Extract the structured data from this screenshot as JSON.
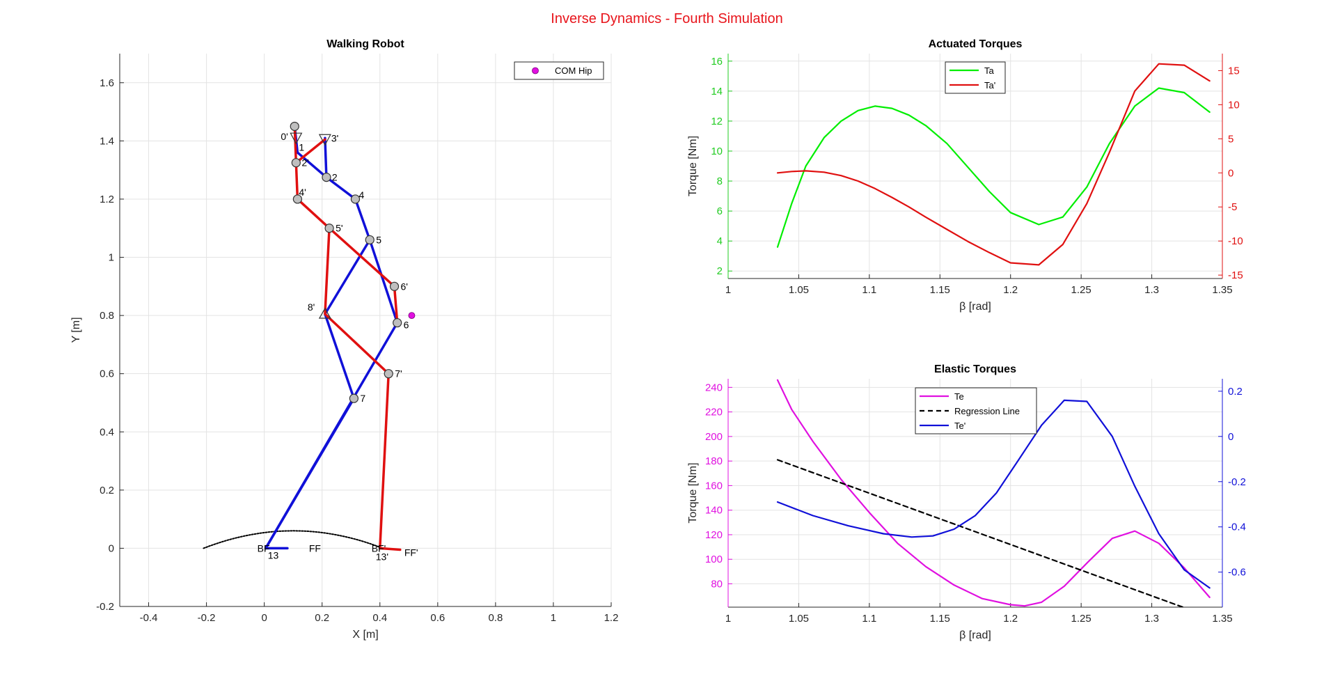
{
  "figure_title": "Inverse Dynamics - Fourth Simulation",
  "chart_data": [
    {
      "id": "walking",
      "type": "line",
      "title": "Walking Robot",
      "xlabel": "X [m]",
      "ylabel": "Y [m]",
      "xlim": [
        -0.5,
        1.2
      ],
      "ylim": [
        -0.2,
        1.7
      ],
      "xticks": [
        -0.4,
        -0.2,
        0,
        0.2,
        0.4,
        0.6,
        0.8,
        1,
        1.2
      ],
      "xtick_labels": [
        "-0.4",
        "-0.2",
        "0",
        "0.2",
        "0.4",
        "0.6",
        "0.8",
        "1",
        "1.2"
      ],
      "yticks": [
        -0.2,
        0,
        0.2,
        0.4,
        0.6,
        0.8,
        1,
        1.2,
        1.4,
        1.6
      ],
      "ytick_labels": [
        "-0.2",
        "0",
        "0.2",
        "0.4",
        "0.6",
        "0.8",
        "1",
        "1.2",
        "1.4",
        "1.6"
      ],
      "grid": true,
      "legend": {
        "location": "top-right",
        "entries": [
          "COM Hip"
        ]
      },
      "colors": {
        "blue": "#1010d8",
        "red": "#e01010",
        "com": "#e010e0",
        "node": "#bfbfbf"
      },
      "nodes": [
        {
          "name": "0'",
          "x": 0.11,
          "y": 1.41,
          "marker": "triangle-down"
        },
        {
          "name": "1",
          "x": 0.115,
          "y": 1.395,
          "marker": "none"
        },
        {
          "name": "3'",
          "x": 0.21,
          "y": 1.405,
          "marker": "triangle-down"
        },
        {
          "name": "2'",
          "x": 0.11,
          "y": 1.325,
          "marker": "circle"
        },
        {
          "name": "2",
          "x": 0.215,
          "y": 1.275,
          "marker": "circle"
        },
        {
          "name": "4'",
          "x": 0.115,
          "y": 1.2,
          "marker": "circle"
        },
        {
          "name": "4",
          "x": 0.315,
          "y": 1.2,
          "marker": "circle"
        },
        {
          "name": "5'",
          "x": 0.225,
          "y": 1.1,
          "marker": "circle"
        },
        {
          "name": "5",
          "x": 0.365,
          "y": 1.06,
          "marker": "circle"
        },
        {
          "name": "6'",
          "x": 0.45,
          "y": 0.9,
          "marker": "circle"
        },
        {
          "name": "8'",
          "x": 0.21,
          "y": 0.805,
          "marker": "triangle-up"
        },
        {
          "name": "6",
          "x": 0.46,
          "y": 0.775,
          "marker": "circle"
        },
        {
          "name": "7'",
          "x": 0.43,
          "y": 0.6,
          "marker": "circle"
        },
        {
          "name": "7",
          "x": 0.31,
          "y": 0.515,
          "marker": "circle"
        },
        {
          "name": "13",
          "x": 0.005,
          "y": 0.0,
          "marker": "none"
        },
        {
          "name": "FF",
          "x": 0.08,
          "y": 0.0,
          "marker": "none"
        },
        {
          "name": "13'",
          "x": 0.4,
          "y": 0.0,
          "marker": "none"
        },
        {
          "name": "FF'",
          "x": 0.47,
          "y": -0.005,
          "marker": "none"
        }
      ],
      "node_labels_shown": [
        "0'",
        "1",
        "3'",
        "2'",
        "2",
        "4'",
        "4",
        "5'",
        "5",
        "6'",
        "8'",
        "6",
        "7'",
        "7",
        "13",
        "FF",
        "13'",
        "FF'"
      ],
      "extra_labels": [
        {
          "text": "BF",
          "x": 0.0,
          "y": 0.0
        },
        {
          "text": "BF'",
          "x": 0.395,
          "y": 0.0
        }
      ],
      "blue_links": [
        [
          [
            0.105,
            1.45
          ],
          [
            0.115,
            1.36
          ]
        ],
        [
          [
            0.21,
            1.41
          ],
          [
            0.215,
            1.275
          ]
        ],
        [
          [
            0.115,
            1.36
          ],
          [
            0.215,
            1.275
          ],
          [
            0.315,
            1.2
          ],
          [
            0.365,
            1.06
          ],
          [
            0.21,
            0.805
          ],
          [
            0.31,
            0.515
          ],
          [
            0.005,
            0.0
          ]
        ],
        [
          [
            0.365,
            1.06
          ],
          [
            0.46,
            0.775
          ],
          [
            0.005,
            0.0
          ]
        ],
        [
          [
            0.005,
            0.0
          ],
          [
            0.08,
            0.0
          ]
        ]
      ],
      "red_links": [
        [
          [
            0.105,
            1.45
          ],
          [
            0.11,
            1.325
          ],
          [
            0.115,
            1.2
          ],
          [
            0.225,
            1.1
          ],
          [
            0.21,
            0.805
          ],
          [
            0.43,
            0.6
          ],
          [
            0.4,
            0.0
          ]
        ],
        [
          [
            0.11,
            1.325
          ],
          [
            0.21,
            1.405
          ]
        ],
        [
          [
            0.225,
            1.1
          ],
          [
            0.45,
            0.9
          ],
          [
            0.46,
            0.775
          ]
        ],
        [
          [
            0.4,
            0.0
          ],
          [
            0.47,
            -0.005
          ]
        ]
      ],
      "com_hip": {
        "x": 0.51,
        "y": 0.8
      },
      "trajectory": {
        "x_start": -0.21,
        "x_end": 0.41,
        "apex_x": 0.1,
        "apex_y": 0.06,
        "style": "dotted"
      }
    },
    {
      "id": "actuated",
      "type": "line",
      "title": "Actuated Torques",
      "xlabel": "β [rad]",
      "ylabel": "Torque [Nm]",
      "xlim": [
        1.0,
        1.35
      ],
      "ylim_left": [
        1.5,
        16.5
      ],
      "ylim_right": [
        -15.5,
        17.5
      ],
      "xticks": [
        1,
        1.05,
        1.1,
        1.15,
        1.2,
        1.25,
        1.3,
        1.35
      ],
      "xtick_labels": [
        "1",
        "1.05",
        "1.1",
        "1.15",
        "1.2",
        "1.25",
        "1.3",
        "1.35"
      ],
      "yticks_left": [
        2,
        4,
        6,
        8,
        10,
        12,
        14,
        16
      ],
      "ytick_labels_left": [
        "2",
        "4",
        "6",
        "8",
        "10",
        "12",
        "14",
        "16"
      ],
      "yticks_right": [
        -15,
        -10,
        -5,
        0,
        5,
        10,
        15
      ],
      "ytick_labels_right": [
        "-15",
        "-10",
        "-5",
        "0",
        "5",
        "10",
        "15"
      ],
      "grid": true,
      "legend": {
        "location": "top-left",
        "entries": [
          "Ta",
          "Ta'"
        ]
      },
      "colors": {
        "left_axis": "#22cc22",
        "right_axis": "#e01010"
      },
      "series": [
        {
          "name": "Ta",
          "axis": "left",
          "color": "#00ee00",
          "x": [
            1.035,
            1.045,
            1.055,
            1.068,
            1.08,
            1.092,
            1.104,
            1.116,
            1.128,
            1.14,
            1.155,
            1.17,
            1.185,
            1.2,
            1.22,
            1.237,
            1.254,
            1.27,
            1.288,
            1.305,
            1.323,
            1.341
          ],
          "values": [
            3.6,
            6.5,
            9.0,
            10.9,
            12.0,
            12.7,
            13.0,
            12.85,
            12.4,
            11.7,
            10.5,
            8.9,
            7.3,
            5.9,
            5.1,
            5.6,
            7.6,
            10.5,
            13.0,
            14.2,
            13.9,
            12.6
          ]
        },
        {
          "name": "Ta'",
          "axis": "right",
          "color": "#e01010",
          "x": [
            1.035,
            1.045,
            1.055,
            1.068,
            1.08,
            1.092,
            1.104,
            1.116,
            1.128,
            1.14,
            1.155,
            1.17,
            1.185,
            1.2,
            1.22,
            1.237,
            1.254,
            1.27,
            1.288,
            1.305,
            1.323,
            1.341
          ],
          "values": [
            0.0,
            0.2,
            0.3,
            0.1,
            -0.4,
            -1.2,
            -2.3,
            -3.6,
            -5.0,
            -6.5,
            -8.3,
            -10.1,
            -11.7,
            -13.2,
            -13.5,
            -10.5,
            -4.5,
            3.0,
            12.0,
            16.0,
            15.8,
            13.5
          ]
        }
      ]
    },
    {
      "id": "elastic",
      "type": "line",
      "title": "Elastic Torques",
      "xlabel": "β [rad]",
      "ylabel": "Torque [Nm]",
      "xlim": [
        1.0,
        1.35
      ],
      "ylim_left": [
        61,
        247
      ],
      "ylim_right": [
        -0.755,
        0.255
      ],
      "xticks": [
        1,
        1.05,
        1.1,
        1.15,
        1.2,
        1.25,
        1.3,
        1.35
      ],
      "xtick_labels": [
        "1",
        "1.05",
        "1.1",
        "1.15",
        "1.2",
        "1.25",
        "1.3",
        "1.35"
      ],
      "yticks_left": [
        80,
        100,
        120,
        140,
        160,
        180,
        200,
        220,
        240
      ],
      "ytick_labels_left": [
        "80",
        "100",
        "120",
        "140",
        "160",
        "180",
        "200",
        "220",
        "240"
      ],
      "yticks_right": [
        -0.6,
        -0.4,
        -0.2,
        0,
        0.2
      ],
      "ytick_labels_right": [
        "-0.6",
        "-0.4",
        "-0.2",
        "0",
        "0.2"
      ],
      "grid": true,
      "legend": {
        "location": "top-center",
        "entries": [
          "Te",
          "Regression Line",
          "Te'"
        ]
      },
      "colors": {
        "left_axis": "#e010e0",
        "right_axis": "#1010d8"
      },
      "series": [
        {
          "name": "Te",
          "axis": "left",
          "color": "#e010e0",
          "style": "solid",
          "x": [
            1.035,
            1.045,
            1.06,
            1.08,
            1.1,
            1.12,
            1.14,
            1.16,
            1.18,
            1.2,
            1.21,
            1.222,
            1.238,
            1.255,
            1.272,
            1.288,
            1.305,
            1.323,
            1.341
          ],
          "values": [
            246,
            222,
            196,
            165,
            138,
            113,
            94,
            79,
            68,
            63,
            62,
            65,
            78,
            98,
            117,
            123,
            113,
            93,
            69
          ]
        },
        {
          "name": "Regression Line",
          "axis": "left",
          "color": "#000000",
          "style": "dashed",
          "x": [
            1.035,
            1.322
          ],
          "values": [
            181,
            61
          ]
        },
        {
          "name": "Te'",
          "axis": "right",
          "color": "#1010d8",
          "style": "solid",
          "x": [
            1.035,
            1.06,
            1.085,
            1.11,
            1.13,
            1.145,
            1.16,
            1.175,
            1.19,
            1.205,
            1.222,
            1.238,
            1.254,
            1.272,
            1.288,
            1.305,
            1.323,
            1.341
          ],
          "values": [
            -0.29,
            -0.35,
            -0.395,
            -0.43,
            -0.445,
            -0.44,
            -0.41,
            -0.35,
            -0.25,
            -0.11,
            0.05,
            0.16,
            0.155,
            0.0,
            -0.22,
            -0.43,
            -0.59,
            -0.67
          ]
        }
      ]
    }
  ]
}
